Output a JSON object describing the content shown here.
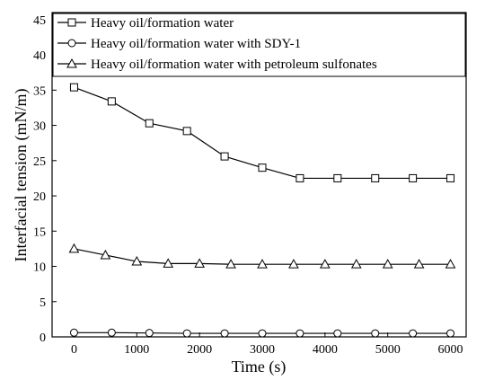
{
  "chart_data": {
    "type": "line",
    "xlabel": "Time (s)",
    "ylabel": "Interfacial tension (mN/m)",
    "xlim": [
      -350,
      6250
    ],
    "ylim": [
      0,
      46
    ],
    "xticks": [
      0,
      1000,
      2000,
      3000,
      4000,
      5000,
      6000
    ],
    "yticks": [
      0,
      5,
      10,
      15,
      20,
      25,
      30,
      35,
      40,
      45
    ],
    "xtick_labels": [
      "0",
      "1000",
      "2000",
      "3000",
      "4000",
      "5000",
      "6000"
    ],
    "ytick_labels": [
      "0",
      "5",
      "10",
      "15",
      "20",
      "25",
      "30",
      "35",
      "40",
      "45"
    ],
    "grid": false,
    "legend_position": "top-left",
    "series": [
      {
        "name": "Heavy oil/formation water",
        "marker": "square",
        "x": [
          0,
          600,
          1200,
          1800,
          2400,
          3000,
          3600,
          4200,
          4800,
          5400,
          6000
        ],
        "y": [
          35.4,
          33.4,
          30.3,
          29.2,
          25.6,
          24.0,
          22.5,
          22.5,
          22.5,
          22.5,
          22.5
        ]
      },
      {
        "name": "Heavy oil/formation water with SDY-1",
        "marker": "circle",
        "x": [
          0,
          600,
          1200,
          1800,
          2400,
          3000,
          3600,
          4200,
          4800,
          5400,
          6000
        ],
        "y": [
          0.6,
          0.6,
          0.55,
          0.5,
          0.5,
          0.5,
          0.5,
          0.5,
          0.5,
          0.5,
          0.5
        ]
      },
      {
        "name": "Heavy oil/formation water with petroleum sulfonates",
        "marker": "triangle",
        "x": [
          0,
          500,
          1000,
          1500,
          2000,
          2500,
          3000,
          3500,
          4000,
          4500,
          5000,
          5500,
          6000
        ],
        "y": [
          12.5,
          11.6,
          10.7,
          10.4,
          10.4,
          10.3,
          10.3,
          10.3,
          10.3,
          10.3,
          10.3,
          10.3,
          10.3
        ]
      }
    ]
  },
  "colors": {
    "line": "#000000",
    "background": "#ffffff"
  }
}
